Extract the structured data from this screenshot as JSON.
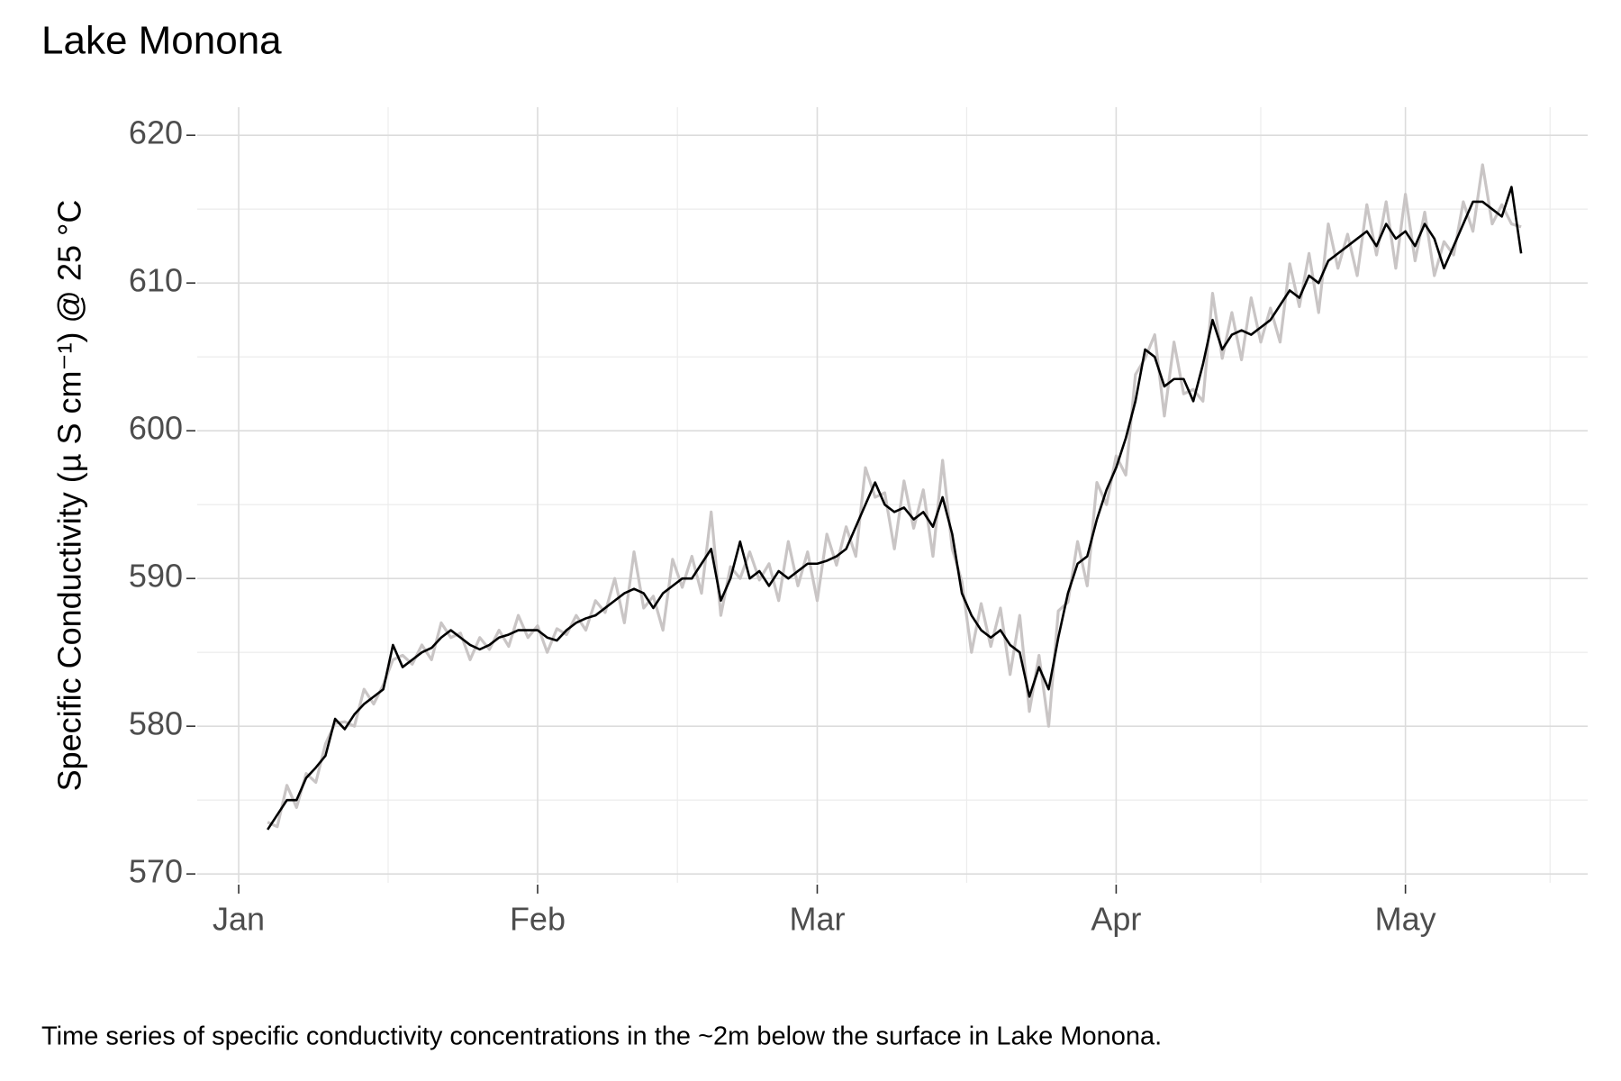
{
  "chart_data": {
    "type": "line",
    "title": "Lake Monona",
    "y_label": "Specific Conductivity (µ S cm⁻¹) @ 25 °C",
    "caption": "Time series of specific conductivity concentrations in the ~2m below the surface in Lake Monona.",
    "x": [
      4,
      5,
      6,
      7,
      8,
      9,
      10,
      11,
      12,
      13,
      14,
      15,
      16,
      17,
      18,
      19,
      20,
      21,
      22,
      23,
      24,
      25,
      26,
      27,
      28,
      29,
      30,
      31,
      32,
      33,
      34,
      35,
      36,
      37,
      38,
      39,
      40,
      41,
      42,
      43,
      44,
      45,
      46,
      47,
      48,
      49,
      50,
      51,
      52,
      53,
      54,
      55,
      56,
      57,
      58,
      59,
      60,
      61,
      62,
      63,
      64,
      65,
      66,
      67,
      68,
      69,
      70,
      71,
      72,
      73,
      74,
      75,
      76,
      77,
      78,
      79,
      80,
      81,
      82,
      83,
      84,
      85,
      86,
      87,
      88,
      89,
      90,
      91,
      92,
      93,
      94,
      95,
      96,
      97,
      98,
      99,
      100,
      101,
      102,
      103,
      104,
      105,
      106,
      107,
      108,
      109,
      110,
      111,
      112,
      113,
      114,
      115,
      116,
      117,
      118,
      119,
      120,
      121,
      122,
      123,
      124,
      125,
      126,
      127,
      128,
      129,
      130,
      131,
      132,
      133,
      134
    ],
    "series": [
      {
        "color": "#c9c5c5",
        "values": [
          573.5,
          573.2,
          576,
          574.5,
          576.8,
          576.2,
          578.8,
          580.2,
          580.3,
          580,
          582.5,
          581.5,
          582.8,
          584.5,
          584.8,
          584.2,
          585.5,
          584.5,
          587,
          586,
          586.3,
          584.5,
          586,
          585.2,
          586.5,
          585.4,
          587.5,
          586,
          586.8,
          585,
          586.6,
          586.2,
          587.5,
          586.5,
          588.5,
          587.7,
          590,
          587,
          591.8,
          588,
          588.8,
          586.5,
          591.3,
          589.4,
          591.5,
          589,
          594.5,
          587.5,
          590.8,
          590,
          591.8,
          589.9,
          591,
          588.5,
          592.5,
          589.5,
          591.8,
          588.5,
          593,
          590.9,
          593.5,
          591.5,
          597.5,
          595.5,
          595.8,
          592,
          596.6,
          593.4,
          596,
          591.5,
          598,
          592,
          589.8,
          585,
          588.3,
          585.4,
          588,
          583.5,
          587.5,
          581,
          584.8,
          580,
          587.8,
          588.4,
          592.5,
          589.5,
          596.5,
          595,
          598.3,
          597,
          603.8,
          604.9,
          606.5,
          601,
          606,
          602.5,
          602.8,
          602,
          609.3,
          604.9,
          608,
          604.8,
          609,
          606,
          608.3,
          606,
          611.3,
          608.4,
          612,
          608,
          614,
          611,
          613.3,
          610.5,
          615.3,
          611.9,
          615.5,
          611,
          616,
          611.5,
          614.8,
          610.5,
          612.8,
          611.9,
          615.5,
          613.5,
          618,
          614,
          615.3,
          614,
          613.8
        ]
      },
      {
        "color": "#000000",
        "values": [
          573,
          574,
          575,
          575,
          576.5,
          577.2,
          578,
          580.5,
          579.8,
          580.8,
          581.5,
          582,
          582.5,
          585.5,
          584,
          584.5,
          585,
          585.3,
          586,
          586.5,
          586,
          585.5,
          585.2,
          585.5,
          586,
          586.2,
          586.5,
          586.5,
          586.5,
          586,
          585.8,
          586.5,
          587,
          587.3,
          587.5,
          588,
          588.5,
          589,
          589.3,
          589,
          588,
          589,
          589.5,
          590,
          590,
          591,
          592,
          588.5,
          590,
          592.5,
          590,
          590.5,
          589.5,
          590.5,
          590,
          590.5,
          591,
          591,
          591.2,
          591.5,
          592,
          593.5,
          595,
          596.5,
          595,
          594.5,
          594.8,
          594,
          594.5,
          593.5,
          595.5,
          593,
          589,
          587.5,
          586.5,
          586,
          586.5,
          585.5,
          585,
          582,
          584,
          582.5,
          586,
          589,
          591,
          591.5,
          594,
          596,
          597.5,
          599.5,
          602,
          605.5,
          605,
          603,
          603.5,
          603.5,
          602,
          604.5,
          607.5,
          605.5,
          606.5,
          606.8,
          606.5,
          607,
          607.5,
          608.5,
          609.5,
          609,
          610.5,
          610,
          611.5,
          612,
          612.5,
          613,
          613.5,
          612.5,
          614,
          613,
          613.5,
          612.5,
          614,
          613,
          611,
          612.5,
          614,
          615.5,
          615.5,
          615,
          614.5,
          616.5,
          612
        ]
      }
    ],
    "xlim": [
      -3.3,
      140.9
    ],
    "xticks": [
      {
        "value": 1,
        "label": "Jan"
      },
      {
        "value": 32,
        "label": "Feb"
      },
      {
        "value": 61,
        "label": "Mar"
      },
      {
        "value": 92,
        "label": "Apr"
      },
      {
        "value": 122,
        "label": "May"
      }
    ],
    "ylim": [
      569.4,
      621.9
    ],
    "yticks": [
      570,
      580,
      590,
      600,
      610,
      620
    ],
    "grid": true
  }
}
